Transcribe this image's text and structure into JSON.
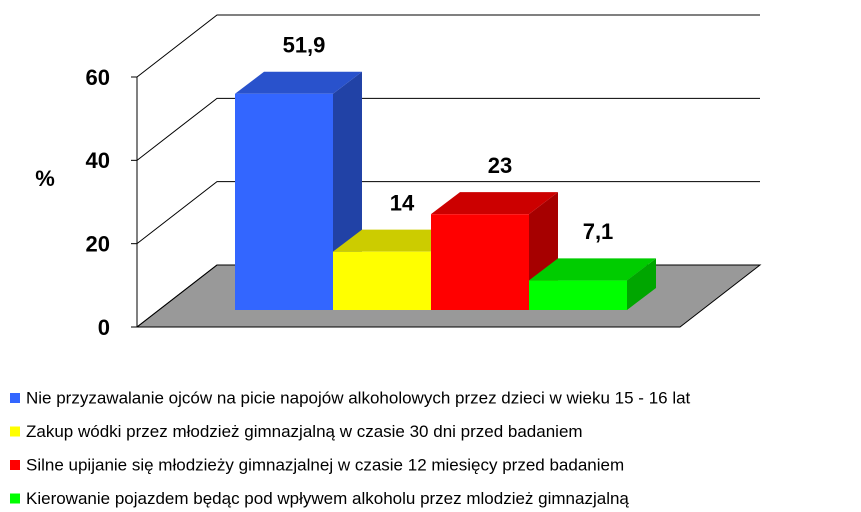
{
  "chart_data": {
    "type": "bar",
    "ylabel": "%",
    "ylim": [
      0,
      60
    ],
    "yticks": [
      0,
      20,
      40,
      60
    ],
    "grid": true,
    "series": [
      {
        "name": "Nie przyzawalanie ojców na picie napojów alkoholowych przez dzieci w wieku 15 - 16 lat",
        "color": "#3366ff",
        "values": [
          51.9
        ],
        "value_labels": [
          "51,9"
        ]
      },
      {
        "name": "Zakup wódki przez młodzież gimnazjalną w czasie 30 dni przed badaniem",
        "color": "#ffff00",
        "values": [
          14
        ],
        "value_labels": [
          "14"
        ]
      },
      {
        "name": "Silne upijanie się młodzieży gimnazjalnej w czasie 12 miesięcy przed badaniem",
        "color": "#ff0000",
        "values": [
          23
        ],
        "value_labels": [
          "23"
        ]
      },
      {
        "name": "Kierowanie pojazdem będąc pod wpływem alkoholu przez mlodzież gimnazjalną",
        "color": "#00ff00",
        "values": [
          7.1
        ],
        "value_labels": [
          "7,1"
        ]
      }
    ]
  }
}
